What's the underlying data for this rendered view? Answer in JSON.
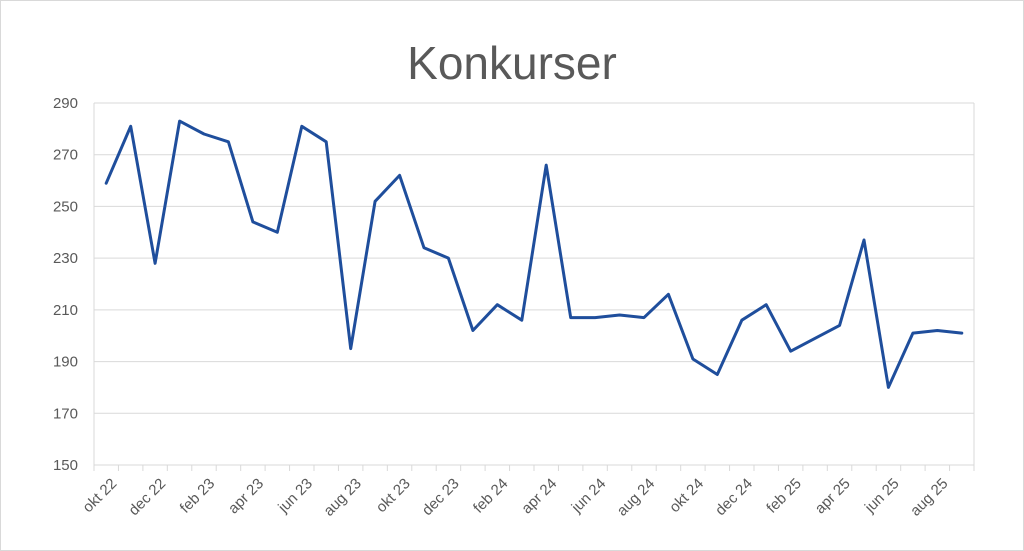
{
  "chart_data": {
    "type": "line",
    "title": "Konkurser",
    "xlabel": "",
    "ylabel": "",
    "ylim": [
      150,
      290
    ],
    "yticks": [
      150,
      170,
      190,
      210,
      230,
      250,
      270,
      290
    ],
    "grid": true,
    "legend": "none",
    "x": [
      "okt 22",
      "nov 22",
      "dec 22",
      "jan 23",
      "feb 23",
      "mar 23",
      "apr 23",
      "maj 23",
      "jun 23",
      "jul 23",
      "aug 23",
      "sep 23",
      "okt 23",
      "nov 23",
      "dec 23",
      "jan 24",
      "feb 24",
      "mar 24",
      "apr 24",
      "maj 24",
      "jun 24",
      "jul 24",
      "aug 24",
      "sep 24",
      "okt 24",
      "nov 24",
      "dec 24",
      "jan 25",
      "feb 25",
      "mar 25",
      "apr 25",
      "maj 25",
      "jun 25",
      "jul 25",
      "aug 25",
      "sep 25"
    ],
    "xtick_labels": [
      "okt 22",
      "dec 22",
      "feb 23",
      "apr 23",
      "jun 23",
      "aug 23",
      "okt 23",
      "dec 23",
      "feb 24",
      "apr 24",
      "jun 24",
      "aug 24",
      "okt 24",
      "dec 24",
      "feb 25",
      "apr 25",
      "jun 25",
      "aug 25"
    ],
    "series": [
      {
        "values": [
          259,
          281,
          228,
          283,
          278,
          275,
          244,
          240,
          281,
          275,
          195,
          252,
          262,
          234,
          230,
          202,
          212,
          206,
          266,
          207,
          207,
          208,
          207,
          216,
          191,
          185,
          206,
          212,
          194,
          199,
          204,
          237,
          180,
          201,
          202,
          201
        ]
      }
    ],
    "line_color": "#1f4e9c"
  }
}
